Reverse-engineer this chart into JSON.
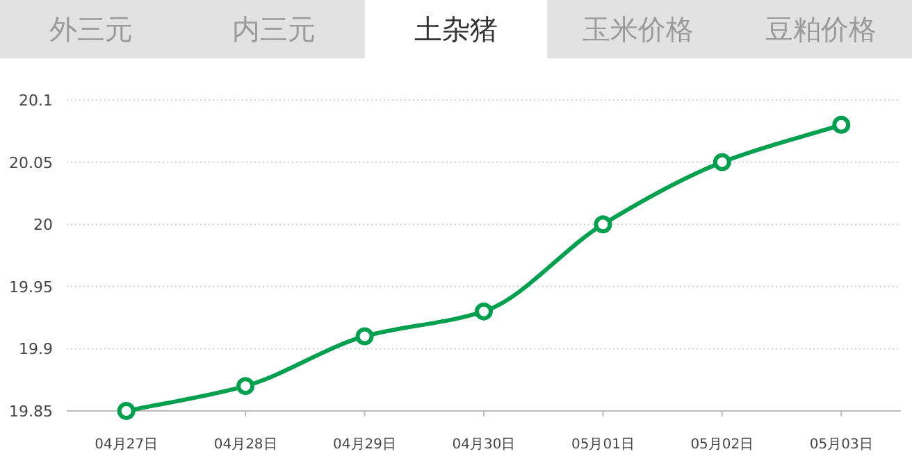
{
  "chart_data": {
    "type": "line",
    "title": "土杂猪",
    "annotations": [
      "外三元",
      "内三元",
      "玉米价格",
      "豆粕价格"
    ],
    "categories": [
      "04月27日",
      "04月28日",
      "04月29日",
      "04月30日",
      "05月01日",
      "05月02日",
      "05月03日"
    ],
    "series": [
      {
        "color": "#00a04e",
        "values": [
          19.85,
          19.87,
          19.91,
          19.93,
          20.0,
          20.05,
          20.08
        ]
      }
    ],
    "ylim": [
      19.85,
      20.1
    ],
    "yticks": [
      19.85,
      19.9,
      19.95,
      20,
      20.05,
      20.1
    ],
    "grid": "y",
    "marker": "circle",
    "line_style": "solid"
  }
}
